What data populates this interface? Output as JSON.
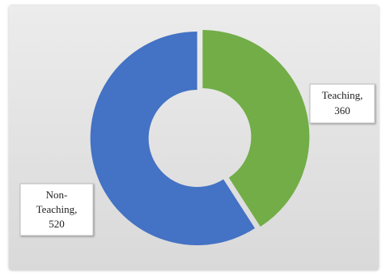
{
  "chart_data": {
    "type": "pie",
    "donut": true,
    "categories": [
      "Teaching",
      "Non-Teaching"
    ],
    "values": [
      360,
      520
    ],
    "colors": [
      "#72AD47",
      "#4472C4"
    ],
    "data_labels": [
      {
        "lines": [
          "Teaching,",
          "360"
        ]
      },
      {
        "lines": [
          "Non-",
          "Teaching,",
          "520"
        ]
      }
    ],
    "title": "",
    "legend": "none"
  }
}
